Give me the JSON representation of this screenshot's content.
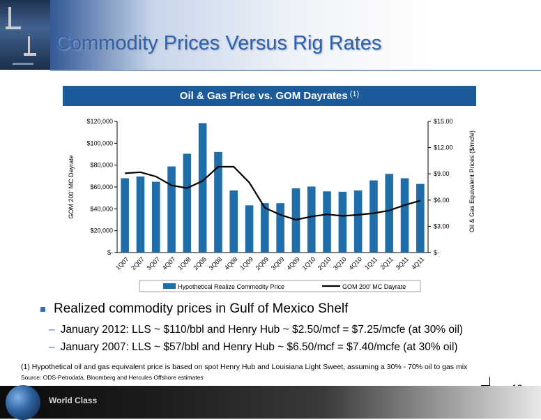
{
  "slide": {
    "title": "Commodity Prices Versus Rig Rates",
    "page_number": "13",
    "footer_text": "World Class"
  },
  "chart_banner": {
    "title": "Oil & Gas Price vs. GOM Dayrates",
    "footnote_ref": "(1)"
  },
  "chart_data": {
    "type": "bar+line",
    "categories": [
      "1Q07",
      "2Q07",
      "3Q07",
      "4Q07",
      "1Q08",
      "2Q08",
      "3Q08",
      "4Q08",
      "1Q09",
      "2Q09",
      "3Q09",
      "4Q09",
      "1Q10",
      "2Q10",
      "3Q10",
      "4Q10",
      "1Q11",
      "2Q11",
      "3Q11",
      "4Q11"
    ],
    "series": [
      {
        "name": "Hypothetical Realize Commodity Price",
        "kind": "bar",
        "axis": "right",
        "color": "#1f6eaa",
        "values": [
          8.5,
          8.7,
          8.1,
          9.85,
          11.3,
          14.8,
          11.5,
          7.1,
          5.4,
          5.65,
          5.65,
          7.35,
          7.55,
          7.0,
          6.95,
          7.1,
          8.25,
          9.0,
          8.5,
          7.85
        ]
      },
      {
        "name": "GOM 200' MC Dayrate",
        "kind": "line",
        "axis": "left",
        "color": "#000000",
        "values": [
          72500,
          73500,
          69500,
          61500,
          59000,
          65500,
          78500,
          78500,
          64000,
          41000,
          34500,
          30000,
          33000,
          35000,
          33500,
          34500,
          36000,
          38500,
          43500,
          47500
        ]
      }
    ],
    "ylabel_left": "GOM 200' MC Dayrate",
    "ylabel_right": "Oil & Gas Equivalent Prices ($/mcfe)",
    "ylim_left": [
      0,
      120000
    ],
    "ylim_right": [
      0,
      15
    ],
    "yticks_left": [
      "$-",
      "$20,000",
      "$40,000",
      "$60,000",
      "$80,000",
      "$100,000",
      "$120,000"
    ],
    "yticks_right": [
      "$-",
      "$3.00",
      "$6.00",
      "$9.00",
      "$12.00",
      "$15.00"
    ],
    "grid": false,
    "legend_position": "bottom"
  },
  "bullets": {
    "main": "Realized commodity prices in Gulf of Mexico Shelf",
    "sub": [
      "January 2012: LLS ~ $110/bbl and Henry Hub ~ $2.50/mcf = $7.25/mcfe (at 30% oil)",
      "January 2007: LLS ~ $57/bbl and Henry Hub ~ $6.50/mcf = $7.40/mcfe (at 30% oil)"
    ]
  },
  "footnote": "(1)  Hypothetical oil and gas equivalent price is based on spot Henry Hub and Louisiana Light Sweet, assuming a 30% - 70% oil to gas mix",
  "source": "Source: ODS-Petrodata, Bloomberg and Hercules Offshore estimates"
}
